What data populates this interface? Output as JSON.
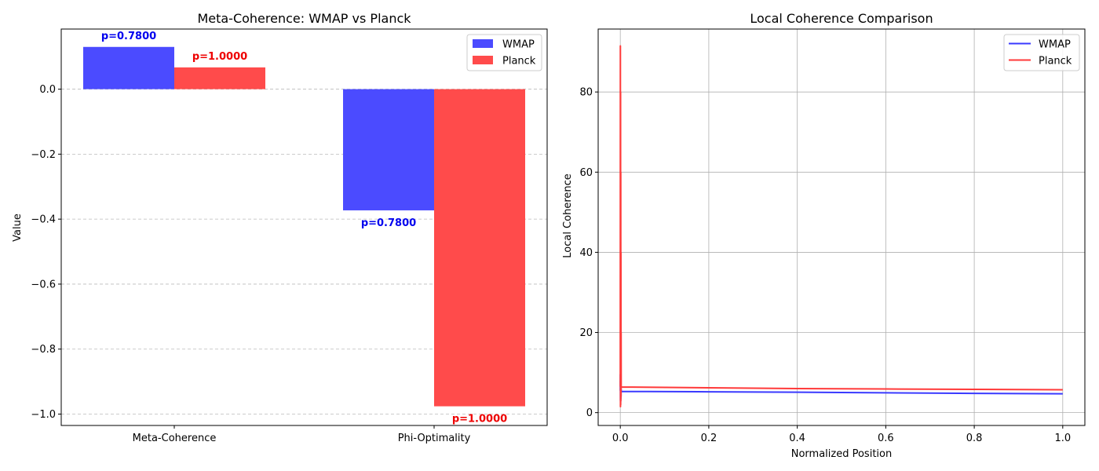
{
  "chart_data": [
    {
      "type": "bar",
      "title": "Meta-Coherence: WMAP vs Planck",
      "xlabel": "",
      "ylabel": "Value",
      "categories": [
        "Meta-Coherence",
        "Phi-Optimality"
      ],
      "series": [
        {
          "name": "WMAP",
          "color": "#4b4bff",
          "label_color": "#0000ee",
          "values": [
            0.13,
            -0.373
          ],
          "labels": [
            "p=0.7800",
            "p=0.7800"
          ]
        },
        {
          "name": "Planck",
          "color": "#ff4b4b",
          "label_color": "#ee0000",
          "values": [
            0.067,
            -0.976
          ],
          "labels": [
            "p=1.0000",
            "p=1.0000"
          ]
        }
      ],
      "ylim": [
        -1.035,
        0.185
      ],
      "yticks": [
        0.0,
        -0.2,
        -0.4,
        -0.6,
        -0.8,
        -1.0
      ],
      "ytick_labels": [
        "0.0",
        "−0.2",
        "−0.4",
        "−0.6",
        "−0.8",
        "−1.0"
      ],
      "grid": "y-dashed",
      "legend": "top-right"
    },
    {
      "type": "line",
      "title": "Local Coherence Comparison",
      "xlabel": "Normalized Position",
      "ylabel": "Local Coherence",
      "xlim": [
        -0.05,
        1.05
      ],
      "ylim": [
        -3.2,
        95.7
      ],
      "xticks": [
        0.0,
        0.2,
        0.4,
        0.6,
        0.8,
        1.0
      ],
      "xtick_labels": [
        "0.0",
        "0.2",
        "0.4",
        "0.6",
        "0.8",
        "1.0"
      ],
      "yticks": [
        0,
        20,
        40,
        60,
        80
      ],
      "ytick_labels": [
        "0",
        "20",
        "40",
        "60",
        "80"
      ],
      "series": [
        {
          "name": "WMAP",
          "color": "#3a3aff",
          "x": [
            0,
            0.0002,
            0.0004,
            0.0006,
            0.0008,
            0.001,
            0.0012,
            0.0014,
            0.0016,
            0.0018,
            0.002,
            0.0025,
            0.003,
            0.2,
            0.4,
            0.6,
            0.8,
            1.0
          ],
          "y": [
            5.5,
            9.5,
            3.0,
            8.0,
            2.8,
            7.0,
            3.5,
            6.5,
            4.0,
            6.0,
            5.3,
            5.4,
            5.3,
            5.2,
            5.1,
            4.95,
            4.8,
            4.7
          ]
        },
        {
          "name": "Planck",
          "color": "#ff3a3a",
          "x": [
            0,
            0.0002,
            0.0004,
            0.0006,
            0.0008,
            0.001,
            0.0012,
            0.0014,
            0.0016,
            0.0018,
            0.002,
            0.0025,
            0.003,
            0.2,
            0.4,
            0.6,
            0.8,
            1.0
          ],
          "y": [
            6.5,
            91.5,
            1.5,
            80.0,
            2.0,
            60.0,
            3.0,
            40.0,
            4.0,
            20.0,
            6.3,
            6.4,
            6.4,
            6.2,
            6.0,
            5.9,
            5.8,
            5.7
          ]
        }
      ],
      "grid": "both",
      "legend": "top-right"
    }
  ]
}
